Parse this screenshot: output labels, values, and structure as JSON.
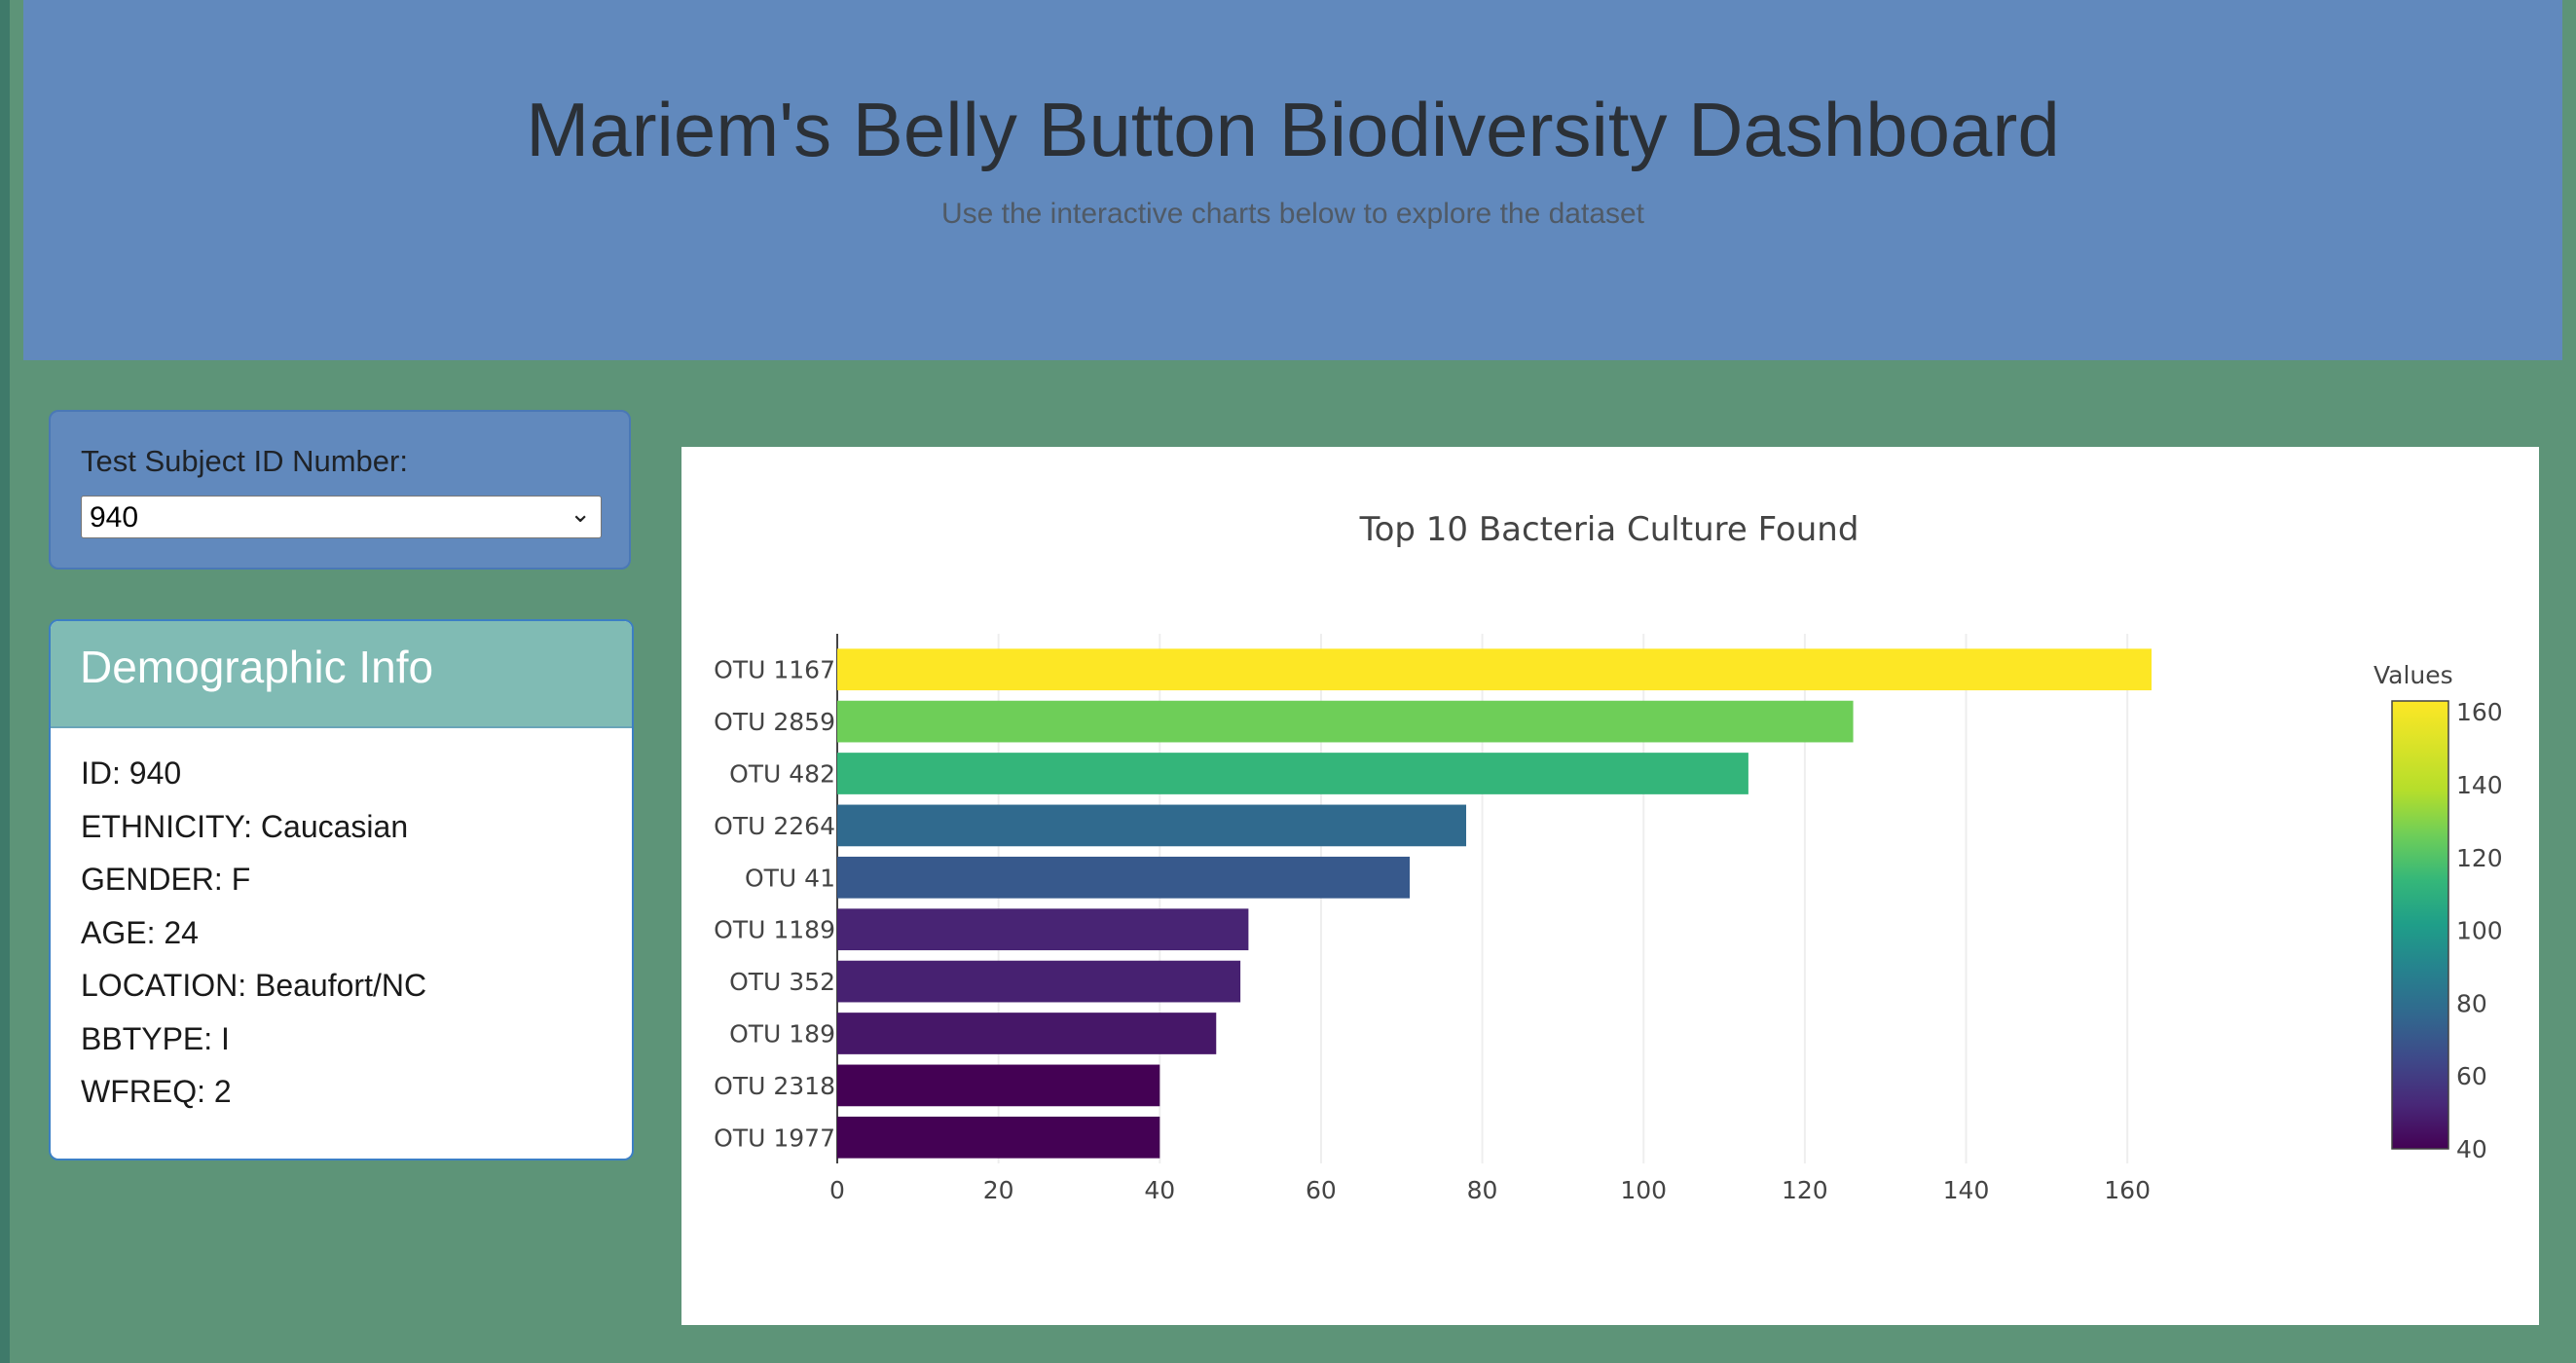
{
  "header": {
    "title": "Mariem's Belly Button Biodiversity Dashboard",
    "subtitle": "Use the interactive charts below to explore the dataset"
  },
  "selector": {
    "label": "Test Subject ID Number:",
    "selected": "940"
  },
  "demographics": {
    "title": "Demographic Info",
    "rows": [
      "ID: 940",
      "ETHNICITY: Caucasian",
      "GENDER: F",
      "AGE: 24",
      "LOCATION: Beaufort/NC",
      "BBTYPE: I",
      "WFREQ: 2"
    ]
  },
  "chart_data": {
    "type": "bar",
    "orientation": "horizontal",
    "title": "Top 10 Bacteria Culture Found",
    "categories": [
      "OTU 1167",
      "OTU 2859",
      "OTU 482",
      "OTU 2264",
      "OTU 41",
      "OTU 1189",
      "OTU 352",
      "OTU 189",
      "OTU 2318",
      "OTU 1977"
    ],
    "values": [
      163,
      126,
      113,
      78,
      71,
      51,
      50,
      47,
      40,
      40
    ],
    "xlim": [
      0,
      163
    ],
    "xticks": [
      0,
      20,
      40,
      60,
      80,
      100,
      120,
      140,
      160
    ],
    "grid": true,
    "colorbar": {
      "title": "Values",
      "ticks": [
        40,
        60,
        80,
        100,
        120,
        140,
        160
      ],
      "range": [
        40,
        163
      ],
      "colorscale": "Viridis"
    }
  }
}
